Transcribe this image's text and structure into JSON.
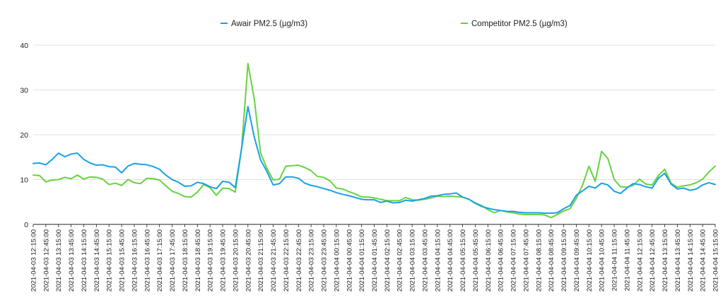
{
  "colors": {
    "awair": "#1aa0e6",
    "competitor": "#66d33f",
    "grid": "#d9d9d9",
    "axis": "#222222",
    "background": "#ffffff"
  },
  "chart_data": {
    "type": "line",
    "title": "",
    "xlabel": "",
    "ylabel": "",
    "ylim": [
      0,
      40
    ],
    "yticks": [
      0,
      10,
      20,
      30,
      40
    ],
    "grid": true,
    "legend_position": "top",
    "x_labels": [
      "2021-04-03 12:15:00",
      "2021-04-03 12:45:00",
      "2021-04-03 13:15:00",
      "2021-04-03 13:45:00",
      "2021-04-03 14:15:00",
      "2021-04-03 14:45:00",
      "2021-04-03 15:15:00",
      "2021-04-03 15:45:00",
      "2021-04-03 16:15:00",
      "2021-04-03 16:45:00",
      "2021-04-03 17:15:00",
      "2021-04-03 17:45:00",
      "2021-04-03 18:15:00",
      "2021-04-03 18:45:00",
      "2021-04-03 19:15:00",
      "2021-04-03 19:45:00",
      "2021-04-03 20:15:00",
      "2021-04-03 20:45:00",
      "2021-04-03 21:15:00",
      "2021-04-03 21:45:00",
      "2021-04-03 22:15:00",
      "2021-04-03 22:45:00",
      "2021-04-03 23:15:00",
      "2021-04-03 23:45:00",
      "2021-04-04 00:15:00",
      "2021-04-04 00:45:00",
      "2021-04-04 01:15:00",
      "2021-04-04 01:45:00",
      "2021-04-04 02:15:00",
      "2021-04-04 02:45:00",
      "2021-04-04 03:15:00",
      "2021-04-04 03:45:00",
      "2021-04-04 04:15:00",
      "2021-04-04 04:45:00",
      "2021-04-04 05:15:00",
      "2021-04-04 05:45:00",
      "2021-04-04 06:15:00",
      "2021-04-04 06:45:00",
      "2021-04-04 07:15:00",
      "2021-04-04 07:45:00",
      "2021-04-04 08:15:00",
      "2021-04-04 08:45:00",
      "2021-04-04 09:15:00",
      "2021-04-04 09:45:00",
      "2021-04-04 10:15:00",
      "2021-04-04 10:45:00",
      "2021-04-04 11:15:00",
      "2021-04-04 11:45:00",
      "2021-04-04 12:15:00",
      "2021-04-04 12:45:00",
      "2021-04-04 13:15:00",
      "2021-04-04 13:45:00",
      "2021-04-04 14:15:00",
      "2021-04-04 14:45:00",
      "2021-04-04 15:15:00"
    ],
    "series": [
      {
        "name": "Awair PM2.5 (µg/m3)",
        "color": "#1aa0e6",
        "values": [
          13.6,
          13.7,
          13.3,
          14.5,
          15.9,
          15.1,
          15.7,
          15.9,
          14.5,
          13.7,
          13.2,
          13.3,
          12.9,
          12.8,
          11.5,
          13.0,
          13.6,
          13.4,
          13.3,
          12.9,
          12.3,
          11.0,
          10.0,
          9.4,
          8.5,
          8.6,
          9.4,
          9.1,
          8.4,
          8.0,
          9.6,
          9.4,
          8.2,
          17.0,
          26.3,
          19.5,
          14.4,
          11.8,
          8.8,
          9.1,
          10.6,
          10.6,
          10.3,
          9.2,
          8.7,
          8.4,
          8.0,
          7.6,
          7.1,
          6.7,
          6.4,
          6.0,
          5.6,
          5.5,
          5.5,
          4.9,
          5.2,
          4.8,
          4.9,
          5.4,
          5.2,
          5.5,
          5.8,
          6.3,
          6.4,
          6.7,
          6.8,
          7.0,
          6.1,
          5.6,
          4.7,
          4.0,
          3.6,
          3.3,
          3.1,
          2.9,
          2.9,
          2.7,
          2.6,
          2.6,
          2.6,
          2.5,
          2.5,
          2.6,
          3.5,
          4.2,
          6.5,
          7.5,
          8.5,
          8.1,
          9.2,
          8.8,
          7.4,
          6.9,
          8.1,
          9.1,
          8.9,
          8.4,
          8.1,
          10.3,
          11.4,
          9.0,
          7.9,
          8.1,
          7.6,
          7.9,
          8.8,
          9.3,
          8.9
        ]
      },
      {
        "name": "Competitor PM2.5 (µg/m3)",
        "color": "#66d33f",
        "values": [
          11.0,
          10.9,
          9.5,
          9.9,
          10.0,
          10.5,
          10.2,
          11.0,
          10.1,
          10.6,
          10.5,
          10.1,
          8.9,
          9.2,
          8.7,
          10.0,
          9.3,
          9.1,
          10.3,
          10.2,
          9.9,
          8.6,
          7.4,
          6.9,
          6.2,
          6.1,
          7.2,
          8.9,
          8.2,
          6.5,
          8.1,
          8.0,
          7.2,
          17.0,
          35.9,
          28.0,
          16.0,
          12.5,
          9.9,
          10.1,
          13.0,
          13.1,
          13.2,
          12.7,
          12.0,
          10.7,
          10.5,
          9.7,
          8.1,
          7.9,
          7.3,
          6.8,
          6.1,
          6.1,
          5.9,
          5.6,
          5.3,
          5.3,
          5.3,
          6.0,
          5.5,
          5.4,
          5.6,
          5.9,
          6.3,
          6.2,
          6.3,
          6.2,
          6.1,
          5.6,
          4.8,
          4.2,
          3.3,
          2.6,
          3.1,
          2.8,
          2.6,
          2.3,
          2.2,
          2.2,
          2.2,
          2.1,
          1.5,
          2.2,
          3.0,
          3.5,
          5.8,
          8.8,
          13.0,
          9.6,
          16.3,
          14.7,
          10.0,
          8.4,
          8.3,
          8.7,
          10.1,
          9.0,
          8.8,
          10.9,
          12.3,
          9.2,
          8.3,
          8.6,
          8.8,
          9.3,
          10.1,
          11.7,
          13.0
        ]
      }
    ]
  }
}
